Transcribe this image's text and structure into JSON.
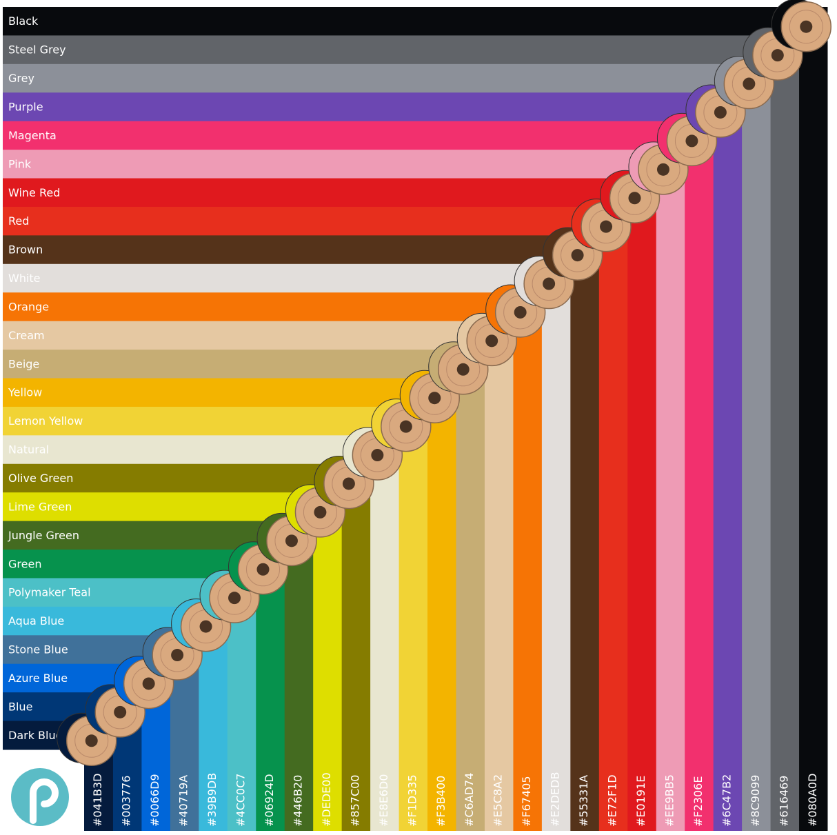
{
  "colors": [
    {
      "name": "Black",
      "hex": "#080A0D"
    },
    {
      "name": "Steel Grey",
      "hex": "#616469"
    },
    {
      "name": "Grey",
      "hex": "#8C9099"
    },
    {
      "name": "Purple",
      "hex": "#6C47B2"
    },
    {
      "name": "Magenta",
      "hex": "#F2306E"
    },
    {
      "name": "Pink",
      "hex": "#EE9BB5"
    },
    {
      "name": "Wine Red",
      "hex": "#E0191E"
    },
    {
      "name": "Red",
      "hex": "#E72F1D"
    },
    {
      "name": "Brown",
      "hex": "#55331A"
    },
    {
      "name": "White",
      "hex": "#E2DEDB"
    },
    {
      "name": "Orange",
      "hex": "#F67405"
    },
    {
      "name": "Cream",
      "hex": "#E5C8A2"
    },
    {
      "name": "Beige",
      "hex": "#C6AD74"
    },
    {
      "name": "Yellow",
      "hex": "#F3B400"
    },
    {
      "name": "Lemon Yellow",
      "hex": "#F1D335"
    },
    {
      "name": "Natural",
      "hex": "#E8E6D0"
    },
    {
      "name": "Olive Green",
      "hex": "#857C00"
    },
    {
      "name": "Lime Green",
      "hex": "#DEDE00"
    },
    {
      "name": "Jungle Green",
      "hex": "#446B20"
    },
    {
      "name": "Green",
      "hex": "#06924D"
    },
    {
      "name": "Polymaker Teal",
      "hex": "#4CC0C7"
    },
    {
      "name": "Aqua Blue",
      "hex": "#39B9DB"
    },
    {
      "name": "Stone Blue",
      "hex": "#40719A"
    },
    {
      "name": "Azure Blue",
      "hex": "#0066D9"
    },
    {
      "name": "Blue",
      "hex": "#003776"
    },
    {
      "name": "Dark Blue",
      "hex": "#041B3D"
    }
  ]
}
